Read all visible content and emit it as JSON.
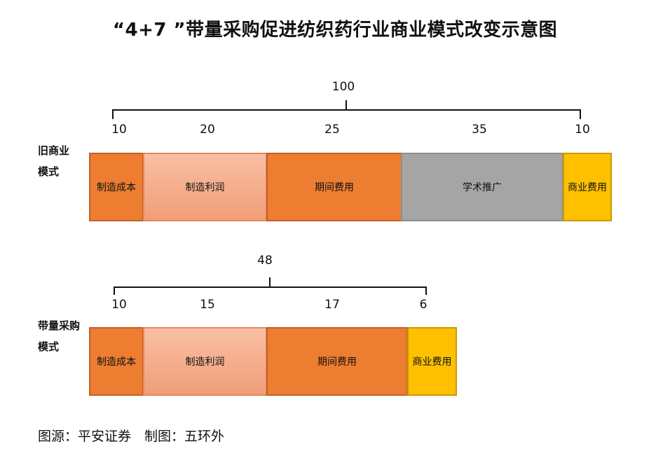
{
  "title": "“4+7 ”带量采购促进纺织药行业商业模式改变示意图",
  "source": "图源：平安证券　制图：五环外",
  "rows": [
    {
      "label_line1": "旧商业",
      "label_line2": "模式",
      "total": "100",
      "segments": [
        {
          "label": "制造成本",
          "value": "10",
          "color": "orange"
        },
        {
          "label": "制造利润",
          "value": "20",
          "color": "peach"
        },
        {
          "label": "期间费用",
          "value": "25",
          "color": "orange"
        },
        {
          "label": "学术推广",
          "value": "35",
          "color": "gray"
        },
        {
          "label": "商业费用",
          "value": "10",
          "color": "gold"
        }
      ]
    },
    {
      "label_line1": "带量采购",
      "label_line2": "模式",
      "total": "48",
      "segments": [
        {
          "label": "制造成本",
          "value": "10",
          "color": "orange"
        },
        {
          "label": "制造利润",
          "value": "15",
          "color": "peach"
        },
        {
          "label": "期间费用",
          "value": "17",
          "color": "orange"
        },
        {
          "label": "商业费用",
          "value": "6",
          "color": "gold"
        }
      ]
    }
  ],
  "colors": {
    "orange": "#ED7D31",
    "peach": "#F4AC87",
    "gray": "#A5A5A5",
    "gold": "#FFC000"
  }
}
